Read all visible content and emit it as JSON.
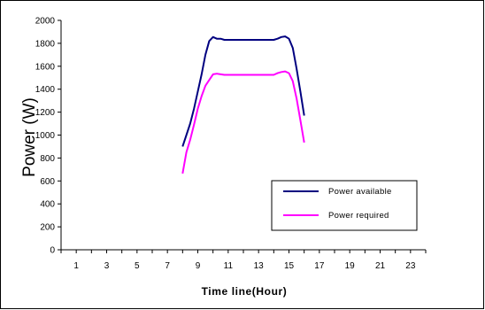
{
  "chart_data": {
    "type": "line",
    "title": "",
    "xlabel": "Time line(Hour)",
    "ylabel": "Power (W)",
    "xlim": [
      0,
      24
    ],
    "ylim": [
      0,
      2000
    ],
    "x_ticks": [
      1,
      3,
      5,
      7,
      9,
      11,
      13,
      15,
      17,
      19,
      21,
      23
    ],
    "y_ticks": [
      0,
      200,
      400,
      600,
      800,
      1000,
      1200,
      1400,
      1600,
      1800,
      2000
    ],
    "grid": false,
    "legend_position": "bottom-right",
    "series": [
      {
        "name": "Power available",
        "color": "#000080",
        "x": [
          8.0,
          8.25,
          8.5,
          8.75,
          9.0,
          9.25,
          9.5,
          9.75,
          10.0,
          10.25,
          10.5,
          10.75,
          11.0,
          12.0,
          13.0,
          14.0,
          14.25,
          14.5,
          14.75,
          15.0,
          15.25,
          15.5,
          15.75,
          16.0
        ],
        "values": [
          900,
          1000,
          1100,
          1230,
          1380,
          1530,
          1700,
          1820,
          1855,
          1840,
          1840,
          1830,
          1830,
          1830,
          1830,
          1830,
          1840,
          1855,
          1860,
          1840,
          1760,
          1580,
          1380,
          1170
        ]
      },
      {
        "name": "Power required",
        "color": "#FF00FF",
        "x": [
          8.0,
          8.25,
          8.5,
          8.75,
          9.0,
          9.25,
          9.5,
          9.75,
          10.0,
          10.25,
          10.5,
          10.75,
          11.0,
          12.0,
          13.0,
          14.0,
          14.25,
          14.5,
          14.75,
          15.0,
          15.25,
          15.5,
          15.75,
          16.0
        ],
        "values": [
          665,
          850,
          960,
          1090,
          1230,
          1340,
          1430,
          1480,
          1530,
          1535,
          1530,
          1525,
          1525,
          1525,
          1525,
          1525,
          1540,
          1550,
          1555,
          1540,
          1470,
          1320,
          1130,
          935
        ]
      }
    ]
  }
}
